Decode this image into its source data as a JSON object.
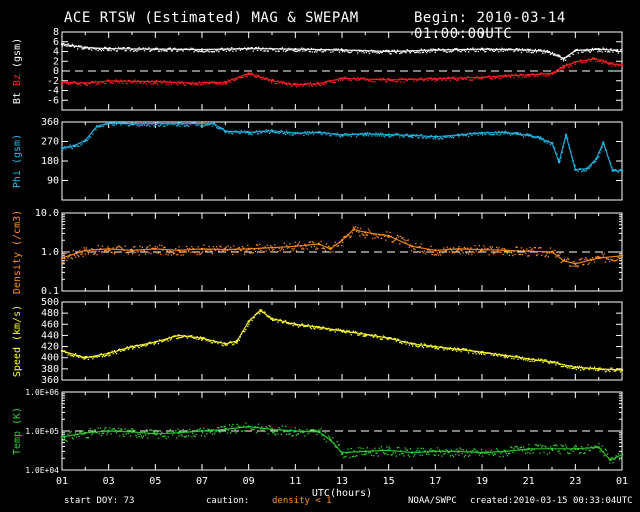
{
  "header": {
    "title": "ACE RTSW (Estimated) MAG & SWEPAM",
    "begin": "Begin: 2010-03-14 01:00:00UTC"
  },
  "footer": {
    "start_doy": "start DOY:  73",
    "caution": "caution:",
    "density_note": "density < 1",
    "agency": "NOAA/SWPC",
    "created": "created:2010-03-15 00:33:04UTC"
  },
  "x_axis": {
    "label": "UTC(hours)",
    "ticks": [
      "01",
      "03",
      "05",
      "07",
      "09",
      "11",
      "13",
      "15",
      "17",
      "19",
      "21",
      "23",
      "01"
    ]
  },
  "colors": {
    "bt": "#ffffff",
    "bz": "#ff2020",
    "phi": "#20b8e8",
    "density": "#ff9020",
    "speed": "#ffff30",
    "temp": "#30d030"
  },
  "chart_data": [
    {
      "type": "scatter",
      "ylabel_parts": [
        "Bt",
        "Bz",
        "(gsm)"
      ],
      "ylim": [
        -8,
        8
      ],
      "yticks": [
        "-6",
        "-4",
        "-2",
        "0",
        "2",
        "4",
        "6",
        "8"
      ],
      "ytick_values": [
        -6,
        -4,
        -2,
        0,
        2,
        4,
        6,
        8
      ],
      "reference_line": 0,
      "series": [
        {
          "name": "Bt",
          "x": [
            0,
            1,
            2,
            4,
            6,
            8,
            10,
            12,
            14,
            16,
            18,
            20,
            20.8,
            21.5,
            22,
            23,
            23.8
          ],
          "y": [
            5.5,
            4.8,
            4.6,
            4.5,
            4.4,
            4.6,
            4.5,
            4.3,
            4.0,
            4.3,
            4.5,
            4.3,
            4.0,
            2.5,
            4.2,
            4.5,
            4.2
          ]
        },
        {
          "name": "Bz",
          "x": [
            0,
            1,
            2,
            4,
            5.5,
            7,
            8,
            9,
            10,
            11,
            12,
            14,
            16,
            18,
            19,
            20,
            21,
            21.5,
            22,
            22.8,
            23.5,
            24
          ],
          "y": [
            -2.3,
            -2.5,
            -2.0,
            -2.2,
            -2.5,
            -2.3,
            -0.5,
            -2.0,
            -2.8,
            -2.6,
            -1.5,
            -1.8,
            -1.6,
            -1.3,
            -1.0,
            -0.8,
            -0.5,
            1.0,
            1.8,
            2.5,
            1.5,
            1.2
          ]
        }
      ]
    },
    {
      "type": "scatter",
      "ylabel_parts": [
        "Phi",
        "(gsm)"
      ],
      "ylim": [
        0,
        360
      ],
      "yticks": [
        "90",
        "180",
        "270",
        "360"
      ],
      "ytick_values": [
        90,
        180,
        270,
        360
      ],
      "series": [
        {
          "name": "Phi",
          "x": [
            0,
            0.5,
            1,
            1.5,
            2,
            3,
            5,
            6.5,
            7,
            8,
            9,
            10,
            11,
            12,
            13,
            14,
            15,
            16,
            17,
            18,
            19,
            19.5,
            20,
            20.5,
            21,
            21.3,
            21.6,
            22,
            22.5,
            22.9,
            23.2,
            23.6,
            24
          ],
          "y": [
            240,
            250,
            275,
            340,
            355,
            352,
            352,
            352,
            318,
            312,
            320,
            308,
            312,
            300,
            305,
            302,
            298,
            292,
            300,
            310,
            312,
            305,
            298,
            285,
            262,
            175,
            300,
            140,
            145,
            190,
            265,
            135,
            135
          ]
        }
      ]
    },
    {
      "type": "scatter",
      "ylabel_parts": [
        "Density",
        "(/cm3)"
      ],
      "log": true,
      "ylim": [
        0.1,
        10
      ],
      "yticks": [
        "0.1",
        "1.0",
        "10.0"
      ],
      "ytick_values": [
        0.1,
        1,
        10
      ],
      "reference_line": 1,
      "series": [
        {
          "name": "Density",
          "x": [
            0,
            1,
            2,
            3,
            4,
            5,
            6,
            7,
            8,
            9,
            10,
            11,
            11.5,
            12,
            12.5,
            13,
            14,
            15,
            16,
            17,
            18,
            19,
            20,
            21,
            21.5,
            22,
            23,
            24
          ],
          "y": [
            0.7,
            1.1,
            1.2,
            1.1,
            1.2,
            1.1,
            1.2,
            1.15,
            1.2,
            1.3,
            1.4,
            1.6,
            1.2,
            2.0,
            3.8,
            3.2,
            2.6,
            1.4,
            1.1,
            1.2,
            1.15,
            1.1,
            1.05,
            1.0,
            0.6,
            0.5,
            0.7,
            0.8
          ]
        }
      ]
    },
    {
      "type": "scatter",
      "ylabel_parts": [
        "Speed",
        "(km/s)"
      ],
      "ylim": [
        360,
        500
      ],
      "yticks": [
        "360",
        "380",
        "400",
        "420",
        "440",
        "460",
        "480",
        "500"
      ],
      "ytick_values": [
        360,
        380,
        400,
        420,
        440,
        460,
        480,
        500
      ],
      "series": [
        {
          "name": "Speed",
          "x": [
            0,
            1,
            2,
            3,
            4,
            5,
            6,
            7,
            7.5,
            8,
            8.5,
            9,
            10,
            11,
            12,
            13,
            14,
            15,
            16,
            17,
            18,
            19,
            20,
            21,
            22,
            23,
            24
          ],
          "y": [
            412,
            400,
            408,
            420,
            428,
            440,
            435,
            425,
            430,
            465,
            485,
            470,
            460,
            455,
            448,
            442,
            435,
            425,
            420,
            415,
            410,
            404,
            398,
            392,
            383,
            380,
            378
          ]
        }
      ]
    },
    {
      "type": "scatter",
      "ylabel_parts": [
        "Temp",
        "(K)"
      ],
      "log": true,
      "ylim": [
        10000,
        1000000
      ],
      "yticks": [
        "1.0E+04",
        "1.0E+05",
        "1.0E+06"
      ],
      "ytick_values": [
        10000,
        100000,
        1000000
      ],
      "reference_line": 100000,
      "series": [
        {
          "name": "Temp",
          "x": [
            0,
            1,
            2,
            3,
            4,
            5,
            6,
            7,
            8,
            9,
            10,
            11,
            11.5,
            12,
            13,
            14,
            15,
            16,
            17,
            18,
            19,
            20,
            21,
            22,
            23,
            23.5,
            24
          ],
          "y": [
            70000,
            90000,
            100000,
            95000,
            85000,
            90000,
            100000,
            110000,
            130000,
            110000,
            100000,
            95000,
            60000,
            28000,
            30000,
            32000,
            28000,
            30000,
            30000,
            28000,
            30000,
            35000,
            35000,
            35000,
            38000,
            18000,
            25000
          ]
        }
      ]
    }
  ]
}
